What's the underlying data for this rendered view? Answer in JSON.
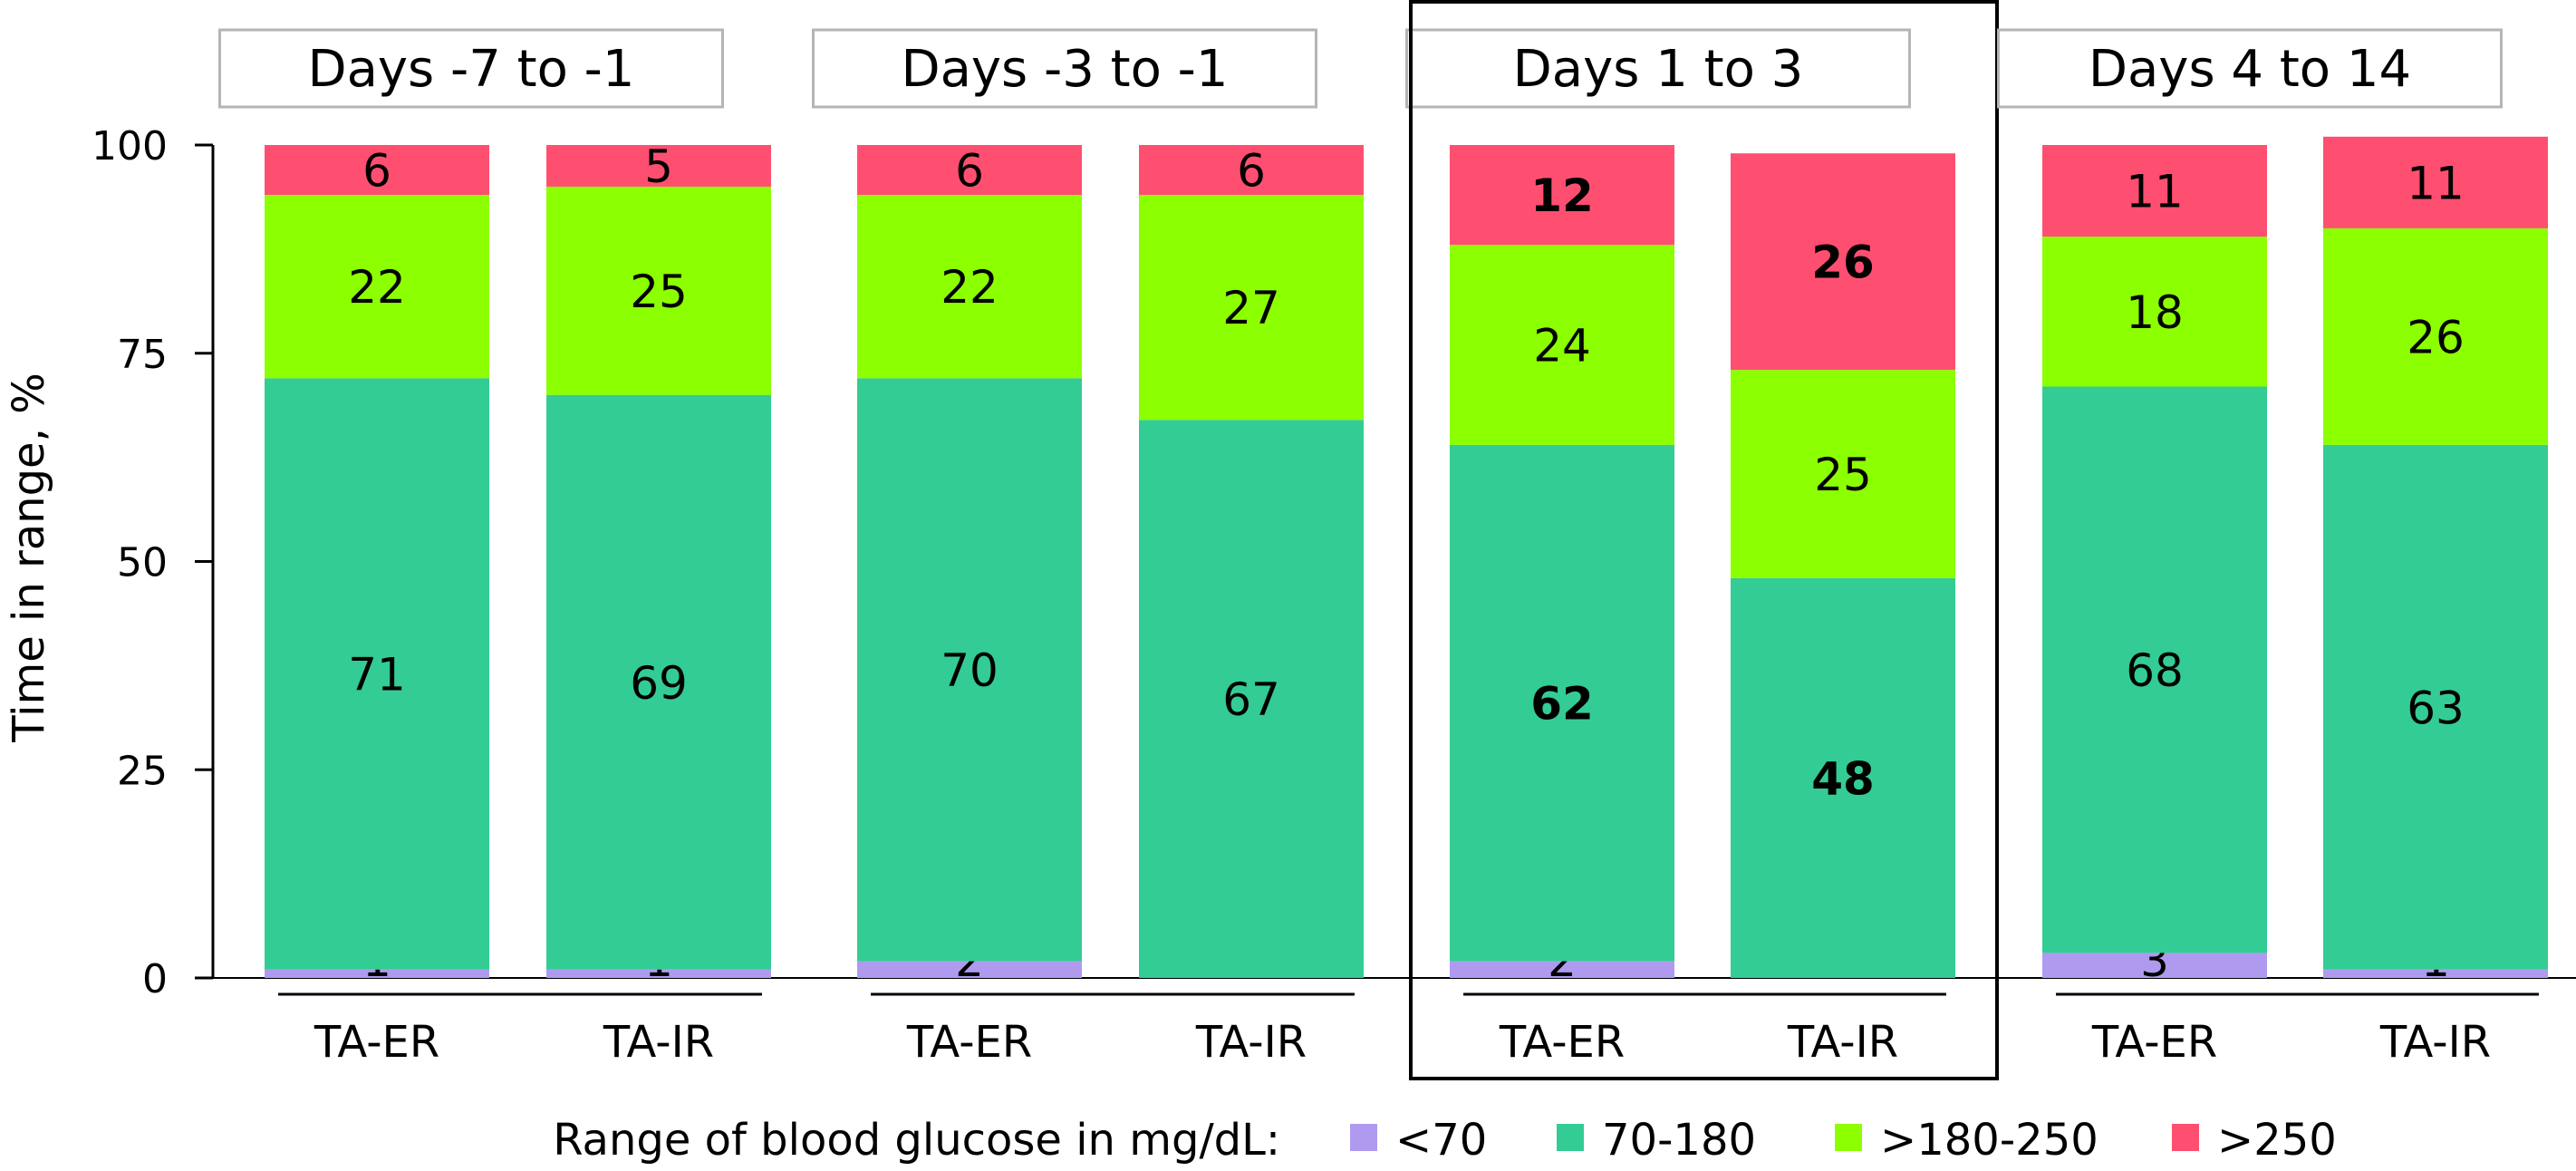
{
  "chart_data": {
    "type": "bar",
    "stacked": true,
    "ylabel": "Time in range, %",
    "ylim": [
      0,
      100
    ],
    "yticks": [
      0,
      25,
      50,
      75,
      100
    ],
    "grid": false,
    "legend_title": "Range of blood glucose in mg/dL:",
    "legend_position": "bottom",
    "highlighted_panel": "Days 1 to 3",
    "series": [
      {
        "name": "<70",
        "color": "#b09af0"
      },
      {
        "name": "70-180",
        "color": "#33cc94"
      },
      {
        "name": ">180-250",
        "color": "#8cff00"
      },
      {
        "name": ">250",
        "color": "#ff4f71"
      }
    ],
    "panels": [
      {
        "title": "Days -7 to -1",
        "bars": [
          {
            "category": "TA-ER",
            "values": [
              1,
              71,
              22,
              6
            ],
            "labels": [
              "1",
              "71",
              "22",
              "6"
            ],
            "bold": [
              false,
              false,
              false,
              false
            ]
          },
          {
            "category": "TA-IR",
            "values": [
              1,
              69,
              25,
              5
            ],
            "labels": [
              "1",
              "69",
              "25",
              "5"
            ],
            "bold": [
              false,
              false,
              false,
              false
            ]
          }
        ]
      },
      {
        "title": "Days -3 to -1",
        "bars": [
          {
            "category": "TA-ER",
            "values": [
              2,
              70,
              22,
              6
            ],
            "labels": [
              "2",
              "70",
              "22",
              "6"
            ],
            "bold": [
              false,
              false,
              false,
              false
            ]
          },
          {
            "category": "TA-IR",
            "values": [
              0,
              67,
              27,
              6
            ],
            "labels": [
              "0",
              "67",
              "27",
              "6"
            ],
            "bold": [
              false,
              false,
              false,
              false
            ]
          }
        ]
      },
      {
        "title": "Days 1 to 3",
        "bars": [
          {
            "category": "TA-ER",
            "values": [
              2,
              62,
              24,
              12
            ],
            "labels": [
              "2",
              "62",
              "24",
              "12"
            ],
            "bold": [
              false,
              true,
              false,
              true
            ]
          },
          {
            "category": "TA-IR",
            "values": [
              0,
              48,
              25,
              26
            ],
            "labels": [
              "0",
              "48",
              "25",
              "26"
            ],
            "bold": [
              false,
              true,
              false,
              true
            ]
          }
        ]
      },
      {
        "title": "Days 4 to 14",
        "bars": [
          {
            "category": "TA-ER",
            "values": [
              3,
              68,
              18,
              11
            ],
            "labels": [
              "3",
              "68",
              "18",
              "11"
            ],
            "bold": [
              false,
              false,
              false,
              false
            ]
          },
          {
            "category": "TA-IR",
            "values": [
              1,
              63,
              26,
              11
            ],
            "labels": [
              "1",
              "63",
              "26",
              "11"
            ],
            "bold": [
              false,
              false,
              false,
              false
            ]
          }
        ]
      }
    ]
  }
}
